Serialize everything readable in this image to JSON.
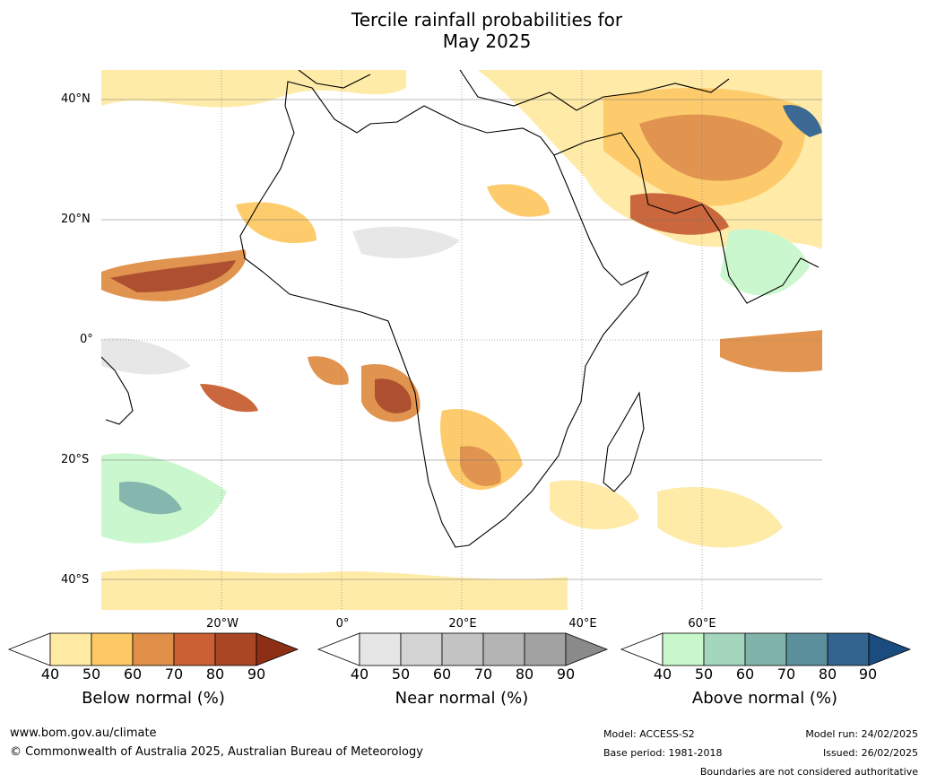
{
  "title": {
    "line1": "Tercile rainfall probabilities for",
    "line2": "May 2025"
  },
  "map": {
    "lat_labels": [
      "40°N",
      "20°N",
      "0°",
      "20°S",
      "40°S"
    ],
    "lon_labels": [
      "20°W",
      "0°",
      "20°E",
      "40°E",
      "60°E"
    ]
  },
  "colorbars": [
    {
      "title": "Below normal (%)",
      "ticks": [
        "40",
        "50",
        "60",
        "70",
        "80",
        "90"
      ],
      "colors": [
        "#ffeaa3",
        "#fdc965",
        "#df8f47",
        "#c95f32",
        "#aa4624",
        "#8c2f14"
      ]
    },
    {
      "title": "Near normal (%)",
      "ticks": [
        "40",
        "50",
        "60",
        "70",
        "80",
        "90"
      ],
      "colors": [
        "#e6e6e6",
        "#d4d4d4",
        "#c3c3c3",
        "#b4b4b4",
        "#a2a2a2",
        "#8a8a8a"
      ]
    },
    {
      "title": "Above normal (%)",
      "ticks": [
        "40",
        "50",
        "60",
        "70",
        "80",
        "90"
      ],
      "colors": [
        "#c9f7cc",
        "#a3d6bc",
        "#80b4ab",
        "#5c8f9c",
        "#33638f",
        "#1a4c80"
      ]
    }
  ],
  "footer": {
    "website": "www.bom.gov.au/climate",
    "copyright": "© Commonwealth of Australia 2025, Australian Bureau of Meteorology",
    "model": "Model: ACCESS-S2",
    "base_period": "Base period: 1981-2018",
    "model_run": "Model run: 24/02/2025",
    "issued": "Issued: 26/02/2025",
    "disclaimer": "Boundaries are not considered authoritative"
  }
}
